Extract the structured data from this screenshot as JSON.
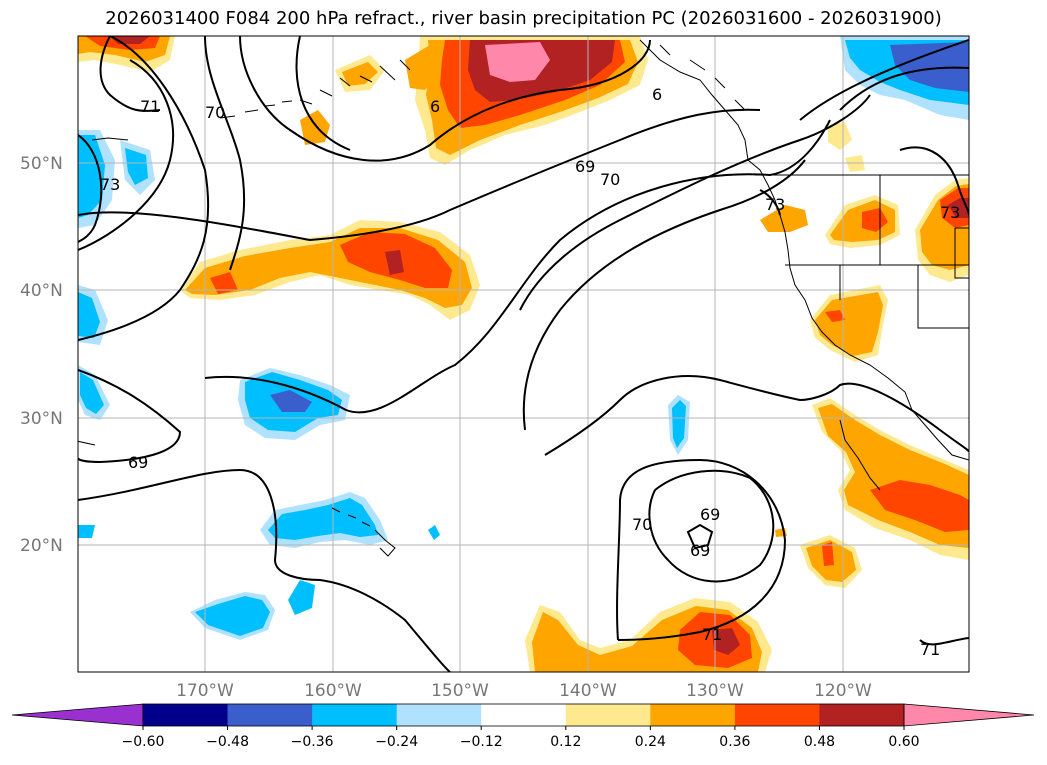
{
  "title": "2026031400 F084 200 hPa refract., river basin precipitation PC (2026031600 - 2026031900)",
  "lat_labels": [
    "50°N",
    "40°N",
    "30°N",
    "20°N"
  ],
  "lon_labels": [
    "170°W",
    "160°W",
    "150°W",
    "140°W",
    "130°W",
    "120°W"
  ],
  "contour_labels": [
    "71",
    "70",
    "73",
    "69",
    "70",
    "69",
    "6",
    "6",
    "73",
    "73",
    "69",
    "70",
    "69",
    "71",
    "71"
  ],
  "colorbar": {
    "ticks": [
      "−0.60",
      "−0.48",
      "−0.36",
      "−0.24",
      "−0.12",
      "0.12",
      "0.24",
      "0.36",
      "0.48",
      "0.60"
    ],
    "colors": [
      "#9b30d0",
      "#00008b",
      "#3a5fcd",
      "#00bfff",
      "#b0e2ff",
      "#ffffff",
      "#ffe98f",
      "#ffa500",
      "#ff4500",
      "#b22222",
      "#ff88aa",
      "#ff88aa"
    ]
  },
  "fill_colors": {
    "neg_light": "#b0e2ff",
    "neg_mid": "#00bfff",
    "neg_dark": "#3a5fcd",
    "pos_light": "#ffe98f",
    "pos_mid": "#ffa500",
    "pos_strong": "#ff4500",
    "pos_dark": "#b22222",
    "pos_max": "#ff88aa"
  }
}
